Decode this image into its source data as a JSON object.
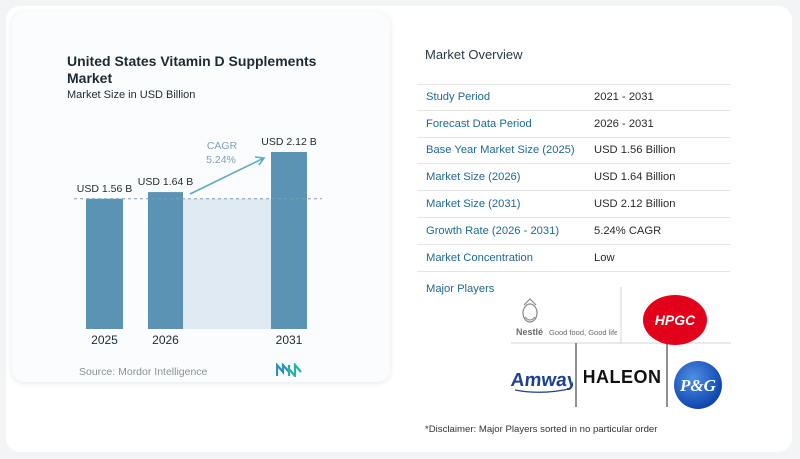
{
  "chart_data": {
    "type": "bar",
    "title": "United States Vitamin D Supplements Market",
    "subtitle": "Market Size in USD Billion",
    "categories": [
      "2025",
      "2026",
      "2031"
    ],
    "values": [
      1.56,
      1.64,
      2.12
    ],
    "data_labels": [
      "USD 1.56 B",
      "USD 1.64 B",
      "USD 2.12 B"
    ],
    "ylim": [
      0,
      2.12
    ],
    "annotation": {
      "label": "CAGR",
      "value": "5.24%"
    },
    "reference_line": 1.56,
    "colors": {
      "bar": "#5b93b5",
      "shade": "#dfe9f1",
      "arrow": "#5fa9c7",
      "cagr": "#7fa1b3"
    }
  },
  "source": "Source:  Mordor Intelligence",
  "overview": {
    "title": "Market Overview",
    "rows": [
      {
        "label": "Study Period",
        "value": "2021 - 2031"
      },
      {
        "label": "Forecast Data Period",
        "value": "2026 - 2031"
      },
      {
        "label": "Base Year Market Size (2025)",
        "value": "USD 1.56 Billion"
      },
      {
        "label": "Market Size (2026)",
        "value": "USD 1.64 Billion"
      },
      {
        "label": "Market Size (2031)",
        "value": "USD 2.12 Billion"
      },
      {
        "label": "Growth Rate (2026 - 2031)",
        "value": "5.24% CAGR"
      },
      {
        "label": "Market Concentration",
        "value": "Low"
      }
    ],
    "players_label": "Major Players",
    "players": [
      "Nestlé Good food, Good life",
      "HPGC",
      "Amway",
      "HALEON",
      "P&G"
    ],
    "disclaimer": "*Disclaimer: Major Players sorted in no particular order"
  }
}
